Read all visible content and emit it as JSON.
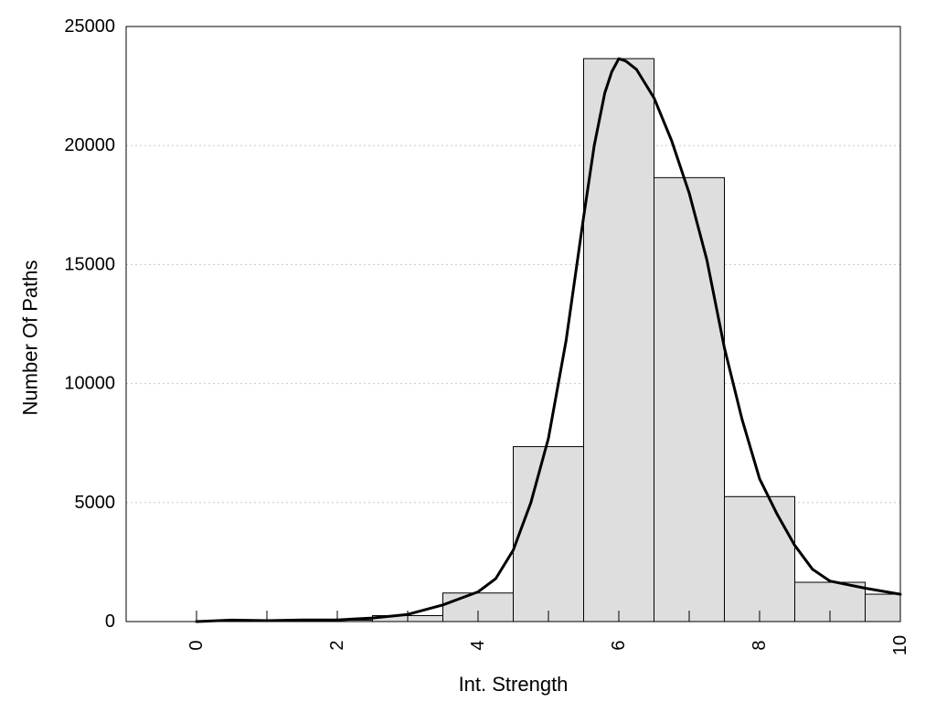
{
  "chart_data": {
    "type": "bar",
    "title": "",
    "xlabel": "Int. Strength",
    "ylabel": "Number Of Paths",
    "xlim": [
      -1,
      10
    ],
    "ylim": [
      0,
      25000
    ],
    "x_ticks": [
      0,
      2,
      4,
      6,
      8,
      10
    ],
    "y_ticks": [
      0,
      5000,
      10000,
      15000,
      20000,
      25000
    ],
    "grid": "horizontal dotted",
    "bar_width": 1,
    "bars": [
      {
        "x": 0,
        "value": 0
      },
      {
        "x": 1,
        "value": 20
      },
      {
        "x": 2,
        "value": 60
      },
      {
        "x": 3,
        "value": 250
      },
      {
        "x": 4,
        "value": 1200
      },
      {
        "x": 5,
        "value": 7350
      },
      {
        "x": 6,
        "value": 23650
      },
      {
        "x": 7,
        "value": 18650
      },
      {
        "x": 8,
        "value": 5250
      },
      {
        "x": 9,
        "value": 1650
      },
      {
        "x": 10,
        "value": 1150
      }
    ],
    "curve": {
      "x": [
        0,
        0.5,
        1,
        1.5,
        2,
        2.5,
        3,
        3.5,
        4,
        4.25,
        4.5,
        4.75,
        5,
        5.25,
        5.5,
        5.65,
        5.8,
        5.9,
        6,
        6.1,
        6.25,
        6.5,
        6.75,
        7,
        7.25,
        7.5,
        7.75,
        8,
        8.25,
        8.5,
        8.75,
        9,
        9.5,
        10
      ],
      "y": [
        0,
        60,
        40,
        70,
        70,
        150,
        300,
        700,
        1250,
        1800,
        3000,
        5000,
        7700,
        11800,
        17000,
        20000,
        22200,
        23100,
        23650,
        23550,
        23200,
        22000,
        20200,
        18000,
        15200,
        11500,
        8500,
        6000,
        4500,
        3200,
        2200,
        1700,
        1400,
        1150
      ]
    },
    "colors": {
      "bar_fill": "#dedede",
      "bar_stroke": "#000000",
      "curve": "#000000"
    }
  }
}
